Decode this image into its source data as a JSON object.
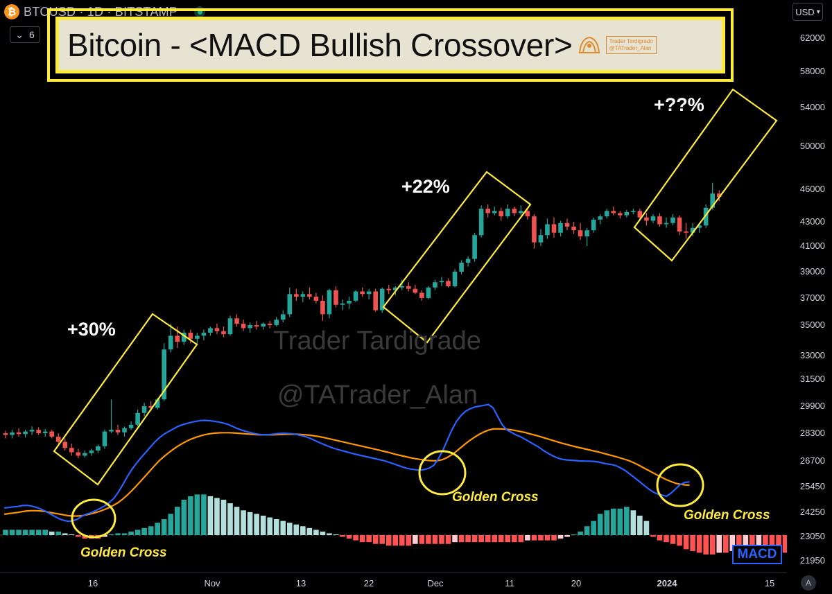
{
  "header": {
    "coin_glyph": "₿",
    "symbol": "BTCUSD · 1D · BITSTAMP",
    "collapse_count": "6",
    "currency": "USD"
  },
  "title": {
    "text": "Bitcoin - <MACD Bullish Crossover>",
    "stamp_line1": "Trader Tardigrado",
    "stamp_line2": "@TATrader_Alan"
  },
  "annotations": {
    "pct1": "+30%",
    "pct2": "+22%",
    "pct3": "+??%",
    "golden_cross_1": "Golden Cross",
    "golden_cross_2": "Golden Cross",
    "golden_cross_3": "Golden Cross",
    "macd_tag": "MACD",
    "auto_button": "A"
  },
  "watermark": {
    "line1": "Trader Tardigrade",
    "line2": "@TATrader_Alan"
  },
  "colors": {
    "up": "#26a69a",
    "down": "#ef5350",
    "macd_line": "#2962ff",
    "signal_line": "#ff9800",
    "highlight": "#ffeb3b",
    "hist_up_strong": "#26a69a",
    "hist_up_weak": "#b2dfdb",
    "hist_down_strong": "#ff5252",
    "hist_down_weak": "#ffcdd2"
  },
  "chart_data": {
    "type": "candlestick",
    "price_axis_labels": [
      62000,
      58000,
      54000,
      50000,
      46000,
      43000,
      41000,
      39000,
      37000,
      35000,
      33000,
      31500,
      29900,
      28300,
      26700,
      25450,
      24250,
      23050,
      21950
    ],
    "x_axis_labels": [
      "16",
      "Nov",
      "13",
      "22",
      "Dec",
      "11",
      "20",
      "2024",
      "15"
    ],
    "candles": [
      [
        28300,
        28450,
        28000,
        28200
      ],
      [
        28200,
        28500,
        28000,
        28350
      ],
      [
        28350,
        28600,
        28100,
        28250
      ],
      [
        28250,
        28500,
        28050,
        28400
      ],
      [
        28400,
        28700,
        28200,
        28500
      ],
      [
        28500,
        28650,
        28200,
        28300
      ],
      [
        28300,
        28550,
        28100,
        28400
      ],
      [
        28400,
        28500,
        28000,
        28100
      ],
      [
        28100,
        28300,
        27700,
        27800
      ],
      [
        27800,
        28000,
        27300,
        27450
      ],
      [
        27450,
        27700,
        27000,
        27200
      ],
      [
        27200,
        27400,
        26850,
        27000
      ],
      [
        27000,
        27300,
        26900,
        27150
      ],
      [
        27150,
        27400,
        27000,
        27300
      ],
      [
        27300,
        27650,
        27150,
        27550
      ],
      [
        27550,
        28500,
        27400,
        28400
      ],
      [
        28400,
        30300,
        28300,
        28500
      ],
      [
        28500,
        28800,
        28200,
        28350
      ],
      [
        28350,
        28700,
        28100,
        28600
      ],
      [
        28600,
        29000,
        28500,
        28800
      ],
      [
        28800,
        29700,
        28700,
        29500
      ],
      [
        29500,
        30100,
        29300,
        29900
      ],
      [
        29900,
        30200,
        29600,
        29800
      ],
      [
        29800,
        30400,
        29700,
        30300
      ],
      [
        30300,
        33800,
        30200,
        33400
      ],
      [
        33400,
        35100,
        33200,
        34300
      ],
      [
        34300,
        34900,
        33500,
        33900
      ],
      [
        33900,
        34700,
        33700,
        34500
      ],
      [
        34500,
        34700,
        33800,
        34100
      ],
      [
        34100,
        34500,
        33700,
        34300
      ],
      [
        34300,
        34700,
        34000,
        34500
      ],
      [
        34500,
        34900,
        34300,
        34800
      ],
      [
        34800,
        35100,
        34400,
        34600
      ],
      [
        34600,
        34900,
        34200,
        34400
      ],
      [
        34400,
        35700,
        34300,
        35500
      ],
      [
        35500,
        35800,
        34900,
        35100
      ],
      [
        35100,
        35400,
        34600,
        34800
      ],
      [
        34800,
        35200,
        34500,
        35000
      ],
      [
        35000,
        35300,
        34700,
        34900
      ],
      [
        34900,
        35200,
        34700,
        35100
      ],
      [
        35100,
        35300,
        34800,
        35000
      ],
      [
        35000,
        35600,
        34900,
        35400
      ],
      [
        35400,
        36100,
        35200,
        35800
      ],
      [
        35800,
        37800,
        35600,
        37300
      ],
      [
        37300,
        37700,
        36800,
        37100
      ],
      [
        37100,
        37500,
        36700,
        37300
      ],
      [
        37300,
        37800,
        36900,
        37100
      ],
      [
        37100,
        37400,
        36600,
        36800
      ],
      [
        36800,
        37200,
        35300,
        35800
      ],
      [
        35800,
        37700,
        35500,
        37600
      ],
      [
        37600,
        37900,
        36300,
        36500
      ],
      [
        36500,
        36900,
        36100,
        36600
      ],
      [
        36600,
        37100,
        36200,
        36800
      ],
      [
        36800,
        37600,
        36700,
        37500
      ],
      [
        37500,
        37800,
        37100,
        37300
      ],
      [
        37300,
        37700,
        36900,
        37500
      ],
      [
        37500,
        37700,
        36000,
        36100
      ],
      [
        36100,
        37800,
        35900,
        37700
      ],
      [
        37700,
        38000,
        37300,
        37600
      ],
      [
        37600,
        37900,
        37200,
        37800
      ],
      [
        37800,
        38400,
        37600,
        37900
      ],
      [
        37900,
        38200,
        37500,
        37700
      ],
      [
        37700,
        38000,
        37300,
        37400
      ],
      [
        37400,
        37600,
        36800,
        37000
      ],
      [
        37000,
        37900,
        36900,
        37800
      ],
      [
        37800,
        38400,
        37600,
        38200
      ],
      [
        38200,
        38600,
        37900,
        38300
      ],
      [
        38300,
        38500,
        37800,
        37900
      ],
      [
        37900,
        39200,
        37800,
        39000
      ],
      [
        39000,
        39900,
        38800,
        39700
      ],
      [
        39700,
        40200,
        39400,
        40000
      ],
      [
        40000,
        42100,
        39800,
        41900
      ],
      [
        41900,
        44500,
        41700,
        44200
      ],
      [
        44200,
        44600,
        43400,
        43800
      ],
      [
        43800,
        44400,
        43600,
        44000
      ],
      [
        44000,
        44300,
        43100,
        43500
      ],
      [
        43500,
        44600,
        43300,
        44200
      ],
      [
        44200,
        44400,
        43500,
        43800
      ],
      [
        43800,
        44500,
        43600,
        44000
      ],
      [
        44000,
        44200,
        43200,
        43500
      ],
      [
        43500,
        43700,
        40800,
        41300
      ],
      [
        41300,
        42400,
        41000,
        41900
      ],
      [
        41900,
        43300,
        41600,
        42800
      ],
      [
        42800,
        43400,
        41700,
        42100
      ],
      [
        42100,
        43100,
        41800,
        42900
      ],
      [
        42900,
        43300,
        42300,
        42600
      ],
      [
        42600,
        43000,
        42000,
        42300
      ],
      [
        42300,
        42900,
        41500,
        41800
      ],
      [
        41800,
        42500,
        41000,
        42300
      ],
      [
        42300,
        43400,
        42100,
        43200
      ],
      [
        43200,
        43700,
        42800,
        43500
      ],
      [
        43500,
        44200,
        43300,
        44000
      ],
      [
        44000,
        44400,
        43600,
        43800
      ],
      [
        43800,
        44000,
        43300,
        43600
      ],
      [
        43600,
        44100,
        43400,
        43900
      ],
      [
        43900,
        44200,
        43700,
        44000
      ],
      [
        44000,
        44200,
        43300,
        43400
      ],
      [
        43400,
        43800,
        42700,
        43100
      ],
      [
        43100,
        43700,
        42900,
        43500
      ],
      [
        43500,
        43800,
        42600,
        42800
      ],
      [
        42800,
        43400,
        42500,
        42900
      ],
      [
        42900,
        43700,
        42700,
        43400
      ],
      [
        43400,
        43600,
        41900,
        42200
      ],
      [
        42200,
        42900,
        41600,
        42100
      ],
      [
        42100,
        42900,
        41800,
        42500
      ],
      [
        42500,
        42900,
        42100,
        42700
      ],
      [
        42700,
        44600,
        42500,
        44300
      ],
      [
        44300,
        46600,
        44100,
        45600
      ],
      [
        45600,
        45900,
        44900,
        45300
      ]
    ],
    "macd": [
      24450,
      24470,
      24500,
      24520,
      24560,
      24570,
      24540,
      24480,
      24400,
      24300,
      24180,
      24050,
      23930,
      23850,
      23800,
      23820,
      23900,
      24050,
      24150,
      24220,
      24320,
      24430,
      24550,
      24700,
      24900,
      25200,
      25550,
      25950,
      26300,
      26600,
      26900,
      27200,
      27500,
      27800,
      28050,
      28250,
      28400,
      28550,
      28700,
      28800,
      28880,
      28950,
      29000,
      29050,
      29060,
      29040,
      29000,
      28960,
      28900,
      28820,
      28700,
      28580,
      28480,
      28400,
      28330,
      28270,
      28230,
      28210,
      28220,
      28250,
      28280,
      28300,
      28290,
      28270,
      28230,
      28170,
      28100,
      28000,
      27880,
      27760,
      27650,
      27540,
      27440,
      27360,
      27290,
      27220,
      27150,
      27080,
      27020,
      26960,
      26900,
      26840,
      26780,
      26720,
      26650,
      26580,
      26500,
      26420,
      26350,
      26300,
      26270,
      26250,
      26280,
      26350,
      26480,
      26800,
      27300,
      27900,
      28500,
      29000,
      29350,
      29600,
      29750,
      29850,
      29900,
      29950,
      30000,
      29800,
      29300,
      28800,
      28500,
      28350,
      28200,
      28100,
      27950,
      27800,
      27650,
      27500,
      27300,
      27150,
      27000,
      26880,
      26800,
      26760,
      26740,
      26720,
      26700,
      26690,
      26690,
      26680,
      26650,
      26600,
      26550,
      26520,
      26460,
      26350,
      26220,
      26050,
      25880,
      25700,
      25520,
      25350,
      25200,
      25100,
      25050,
      25000,
      25150,
      25350,
      25550,
      25650,
      25680
    ],
    "signal": [
      24150,
      24180,
      24210,
      24240,
      24280,
      24310,
      24320,
      24320,
      24310,
      24280,
      24240,
      24200,
      24160,
      24120,
      24080,
      24060,
      24060,
      24080,
      24120,
      24170,
      24230,
      24300,
      24380,
      24470,
      24580,
      24710,
      24870,
      25060,
      25270,
      25500,
      25740,
      25990,
      26240,
      26490,
      26730,
      26960,
      27170,
      27370,
      27550,
      27710,
      27850,
      27970,
      28070,
      28150,
      28220,
      28270,
      28300,
      28320,
      28330,
      28330,
      28320,
      28300,
      28280,
      28260,
      28240,
      28220,
      28210,
      28210,
      28210,
      28210,
      28220,
      28230,
      28240,
      28240,
      28240,
      28230,
      28210,
      28180,
      28140,
      28100,
      28050,
      27990,
      27930,
      27870,
      27810,
      27750,
      27690,
      27630,
      27570,
      27510,
      27450,
      27390,
      27330,
      27260,
      27200,
      27130,
      27060,
      27000,
      26940,
      26880,
      26830,
      26790,
      26750,
      26720,
      26710,
      26720,
      26780,
      26900,
      27060,
      27260,
      27480,
      27700,
      27900,
      28080,
      28240,
      28370,
      28480,
      28550,
      28560,
      28550,
      28530,
      28500,
      28450,
      28400,
      28340,
      28270,
      28200,
      28130,
      28050,
      27970,
      27890,
      27810,
      27730,
      27660,
      27590,
      27520,
      27460,
      27400,
      27340,
      27280,
      27220,
      27150,
      27080,
      27010,
      26940,
      26860,
      26780,
      26690,
      26590,
      26480,
      26360,
      26240,
      26120,
      26000,
      25890,
      25780,
      25690,
      25610,
      25560,
      25530,
      25520
    ],
    "histogram": [
      3,
      3,
      3,
      3,
      3,
      3,
      3,
      2,
      2,
      1,
      0,
      -1,
      -2,
      -2,
      -2,
      -1,
      0,
      1,
      1,
      2,
      3,
      4,
      5,
      7,
      9,
      12,
      16,
      20,
      22,
      23,
      23,
      22,
      21,
      20,
      18,
      16,
      14,
      13,
      12,
      11,
      10,
      9,
      8,
      7,
      6,
      5,
      4,
      3,
      2,
      1,
      0,
      -1,
      -2,
      -3,
      -4,
      -4,
      -5,
      -5,
      -6,
      -6,
      -6,
      -6,
      -5,
      -5,
      -5,
      -5,
      -5,
      -5,
      -4,
      -4,
      -4,
      -4,
      -4,
      -4,
      -4,
      -4,
      -4,
      -4,
      -4,
      -3,
      -3,
      -3,
      -3,
      -3,
      -2,
      -1,
      0,
      2,
      5,
      8,
      12,
      14,
      15,
      15,
      16,
      14,
      11,
      8,
      -1,
      -3,
      -4,
      -5,
      -6,
      -8,
      -9,
      -10,
      -11,
      -11,
      -10,
      -10,
      -9,
      -9,
      -8,
      -8,
      -7,
      -7,
      -8,
      -9,
      -10,
      -11,
      -12,
      -12,
      -11,
      -10,
      -8,
      -5,
      -2,
      1
    ]
  }
}
